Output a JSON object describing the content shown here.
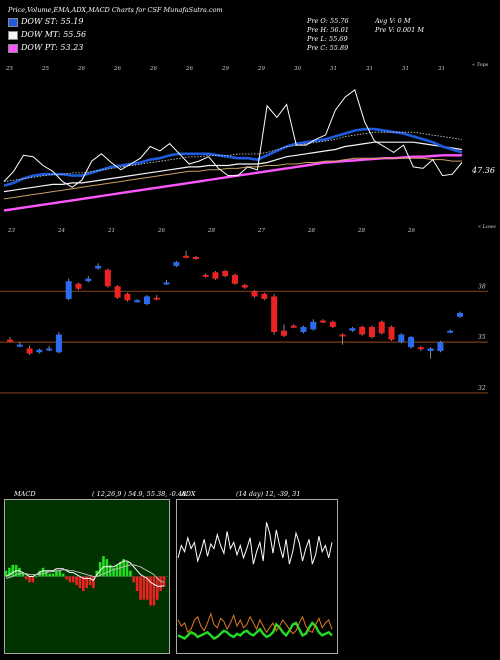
{
  "header": {
    "title": "Price,Volume,EMA,ADX,MACD Charts for CSF MunafaSutra.com",
    "pre_o": "Pre  O: 55.76",
    "pre_h": "Pre  H: 56.01",
    "pre_l": "Pre  L: 55.69",
    "pre_c": "Pre  C: 55.89",
    "avg_v": "Avg V: 0  M",
    "pre_v": "Pre  V: 0.001 M"
  },
  "legend": [
    {
      "label": "DOW ST: 55.19",
      "color": "#1e5bdc"
    },
    {
      "label": "DOW MT: 55.56",
      "color": "#f5f5f5"
    },
    {
      "label": "DOW PT: 53.23",
      "color": "#ff55ff"
    }
  ],
  "ema_panel": {
    "last_label": "47.36",
    "corner_top": "« Tops",
    "corner_bottom": "« Lows",
    "top_dates": [
      "25",
      "25",
      "26",
      "26",
      "26",
      "26",
      "29",
      "29",
      "30",
      "31",
      "31",
      "31",
      "31"
    ],
    "bottom_dates": [
      "23",
      "24",
      "21",
      "26",
      "28",
      "27",
      "28",
      "28",
      "26"
    ]
  },
  "chart_data": [
    {
      "type": "line",
      "name": "ema-price-panel",
      "series": [
        {
          "name": "Price",
          "color": "#ffffff",
          "values": [
            47.2,
            47.9,
            49.0,
            48.9,
            48.3,
            47.9,
            47.2,
            46.8,
            47.3,
            48.6,
            49.1,
            48.5,
            48.0,
            48.4,
            48.8,
            49.6,
            49.3,
            49.8,
            49.1,
            48.4,
            48.6,
            48.9,
            48.1,
            47.6,
            47.6,
            48.2,
            48.0,
            52.4,
            51.6,
            52.5,
            49.7,
            49.7,
            50.1,
            50.4,
            52.1,
            53.0,
            53.5,
            51.3,
            50.0,
            49.6,
            49.2,
            49.7,
            48.2,
            48.1,
            48.7,
            47.6,
            47.7,
            48.5
          ]
        },
        {
          "name": "EMA fast",
          "color": "#1e5bdc",
          "values": [
            46.9,
            47.1,
            47.4,
            47.6,
            47.7,
            47.7,
            47.7,
            47.6,
            47.6,
            47.8,
            48.0,
            48.2,
            48.3,
            48.4,
            48.5,
            48.7,
            48.8,
            49.0,
            49.1,
            49.1,
            49.1,
            49.1,
            49.0,
            48.9,
            48.8,
            48.8,
            48.7,
            49.0,
            49.3,
            49.6,
            49.8,
            49.9,
            50.0,
            50.1,
            50.3,
            50.5,
            50.7,
            50.8,
            50.8,
            50.7,
            50.6,
            50.5,
            50.3,
            50.1,
            49.9,
            49.6,
            49.4,
            49.2
          ]
        },
        {
          "name": "EMA mid",
          "color": "#f5f5f5",
          "values": [
            46.5,
            46.6,
            46.7,
            46.8,
            46.9,
            47.0,
            47.0,
            47.1,
            47.1,
            47.2,
            47.3,
            47.4,
            47.5,
            47.6,
            47.7,
            47.8,
            47.9,
            48.0,
            48.1,
            48.2,
            48.2,
            48.3,
            48.3,
            48.3,
            48.4,
            48.4,
            48.4,
            48.5,
            48.7,
            48.9,
            49.0,
            49.1,
            49.2,
            49.3,
            49.4,
            49.6,
            49.7,
            49.8,
            49.9,
            49.9,
            49.9,
            49.9,
            49.9,
            49.8,
            49.7,
            49.6,
            49.5,
            49.4
          ]
        },
        {
          "name": "EMA slow",
          "color": "#c8a060",
          "values": [
            46.0,
            46.1,
            46.2,
            46.3,
            46.4,
            46.5,
            46.6,
            46.7,
            46.8,
            46.9,
            47.0,
            47.1,
            47.2,
            47.3,
            47.4,
            47.5,
            47.6,
            47.7,
            47.8,
            47.9,
            47.9,
            48.0,
            48.0,
            48.1,
            48.1,
            48.2,
            48.2,
            48.3,
            48.3,
            48.4,
            48.4,
            48.5,
            48.5,
            48.6,
            48.6,
            48.7,
            48.8,
            48.8,
            48.8,
            48.8,
            48.8,
            48.8,
            48.8,
            48.8,
            48.7,
            48.7,
            48.6,
            48.6
          ]
        },
        {
          "name": "Long EMA",
          "color": "#ff55ff",
          "values": [
            45.2,
            45.3,
            45.4,
            45.5,
            45.6,
            45.7,
            45.8,
            45.9,
            46.0,
            46.1,
            46.2,
            46.3,
            46.4,
            46.5,
            46.6,
            46.7,
            46.8,
            46.9,
            47.0,
            47.1,
            47.2,
            47.3,
            47.4,
            47.5,
            47.6,
            47.7,
            47.8,
            47.9,
            48.0,
            48.1,
            48.2,
            48.3,
            48.4,
            48.5,
            48.55,
            48.6,
            48.65,
            48.7,
            48.75,
            48.8,
            48.8,
            48.85,
            48.9,
            48.9,
            48.95,
            49.0,
            49.0,
            49.0
          ]
        }
      ],
      "ylim": [
        44.0,
        55.0
      ]
    },
    {
      "type": "candlestick",
      "name": "price-candles",
      "yticks": [
        {
          "value": 55.5,
          "label": "38"
        },
        {
          "value": 53.5,
          "label": "35"
        },
        {
          "value": 51.5,
          "label": "32"
        }
      ],
      "ylim": [
        51.3,
        57.6
      ],
      "candles": [
        {
          "o": 53.6,
          "c": 53.54,
          "h": 53.7,
          "l": 53.5,
          "up": false
        },
        {
          "o": 53.35,
          "c": 53.4,
          "h": 53.5,
          "l": 53.3,
          "up": true
        },
        {
          "o": 53.25,
          "c": 53.05,
          "h": 53.35,
          "l": 53.0,
          "up": false
        },
        {
          "o": 53.1,
          "c": 53.2,
          "h": 53.25,
          "l": 53.05,
          "up": true
        },
        {
          "o": 53.2,
          "c": 53.25,
          "h": 53.35,
          "l": 53.15,
          "up": true
        },
        {
          "o": 53.1,
          "c": 53.8,
          "h": 53.9,
          "l": 53.05,
          "up": true
        },
        {
          "o": 55.2,
          "c": 55.9,
          "h": 56.0,
          "l": 55.15,
          "up": true
        },
        {
          "o": 55.8,
          "c": 55.6,
          "h": 55.85,
          "l": 55.55,
          "up": false
        },
        {
          "o": 55.9,
          "c": 56.0,
          "h": 56.1,
          "l": 55.85,
          "up": true
        },
        {
          "o": 56.4,
          "c": 56.5,
          "h": 56.6,
          "l": 56.35,
          "up": true
        },
        {
          "o": 56.35,
          "c": 55.7,
          "h": 56.4,
          "l": 55.65,
          "up": false
        },
        {
          "o": 55.7,
          "c": 55.25,
          "h": 55.75,
          "l": 55.2,
          "up": false
        },
        {
          "o": 55.4,
          "c": 55.15,
          "h": 55.45,
          "l": 55.1,
          "up": false
        },
        {
          "o": 55.1,
          "c": 55.15,
          "h": 55.2,
          "l": 55.05,
          "up": true
        },
        {
          "o": 55.0,
          "c": 55.3,
          "h": 55.35,
          "l": 54.95,
          "up": true
        },
        {
          "o": 55.2,
          "c": 55.25,
          "h": 55.35,
          "l": 55.15,
          "up": false
        },
        {
          "o": 55.8,
          "c": 55.85,
          "h": 55.95,
          "l": 55.75,
          "up": true
        },
        {
          "o": 56.5,
          "c": 56.65,
          "h": 56.7,
          "l": 56.45,
          "up": true
        },
        {
          "o": 56.9,
          "c": 56.85,
          "h": 57.1,
          "l": 56.8,
          "up": false
        },
        {
          "o": 56.85,
          "c": 56.8,
          "h": 56.9,
          "l": 56.75,
          "up": false
        },
        {
          "o": 56.15,
          "c": 56.1,
          "h": 56.2,
          "l": 56.05,
          "up": false
        },
        {
          "o": 56.25,
          "c": 56.0,
          "h": 56.3,
          "l": 55.95,
          "up": false
        },
        {
          "o": 56.3,
          "c": 56.1,
          "h": 56.35,
          "l": 56.05,
          "up": false
        },
        {
          "o": 56.15,
          "c": 55.8,
          "h": 56.2,
          "l": 55.75,
          "up": false
        },
        {
          "o": 55.75,
          "c": 55.65,
          "h": 55.8,
          "l": 55.6,
          "up": false
        },
        {
          "o": 55.5,
          "c": 55.3,
          "h": 55.55,
          "l": 55.25,
          "up": false
        },
        {
          "o": 55.4,
          "c": 55.2,
          "h": 55.45,
          "l": 55.15,
          "up": false
        },
        {
          "o": 55.3,
          "c": 53.9,
          "h": 55.4,
          "l": 53.8,
          "up": false
        },
        {
          "o": 53.95,
          "c": 53.75,
          "h": 54.2,
          "l": 53.7,
          "up": false
        },
        {
          "o": 54.15,
          "c": 54.1,
          "h": 54.2,
          "l": 54.05,
          "up": false
        },
        {
          "o": 53.9,
          "c": 54.1,
          "h": 54.15,
          "l": 53.85,
          "up": true
        },
        {
          "o": 54.0,
          "c": 54.3,
          "h": 54.4,
          "l": 53.95,
          "up": true
        },
        {
          "o": 54.3,
          "c": 54.35,
          "h": 54.4,
          "l": 54.25,
          "up": false
        },
        {
          "o": 54.3,
          "c": 54.1,
          "h": 54.35,
          "l": 54.05,
          "up": false
        },
        {
          "o": 53.8,
          "c": 53.75,
          "h": 53.85,
          "l": 53.4,
          "up": false
        },
        {
          "o": 53.95,
          "c": 54.05,
          "h": 54.1,
          "l": 53.9,
          "up": true
        },
        {
          "o": 54.1,
          "c": 53.8,
          "h": 54.15,
          "l": 53.75,
          "up": false
        },
        {
          "o": 54.1,
          "c": 53.7,
          "h": 54.15,
          "l": 53.65,
          "up": false
        },
        {
          "o": 54.3,
          "c": 53.85,
          "h": 54.35,
          "l": 53.8,
          "up": false
        },
        {
          "o": 54.1,
          "c": 53.6,
          "h": 54.15,
          "l": 53.55,
          "up": false
        },
        {
          "o": 53.5,
          "c": 53.8,
          "h": 53.85,
          "l": 53.45,
          "up": true
        },
        {
          "o": 53.3,
          "c": 53.7,
          "h": 53.75,
          "l": 53.25,
          "up": true
        },
        {
          "o": 53.3,
          "c": 53.25,
          "h": 53.35,
          "l": 53.15,
          "up": false
        },
        {
          "o": 53.15,
          "c": 53.25,
          "h": 53.3,
          "l": 52.85,
          "up": true
        },
        {
          "o": 53.15,
          "c": 53.5,
          "h": 53.55,
          "l": 53.1,
          "up": true
        },
        {
          "o": 53.9,
          "c": 53.95,
          "h": 54.0,
          "l": 53.85,
          "up": true
        },
        {
          "o": 54.5,
          "c": 54.65,
          "h": 54.7,
          "l": 54.45,
          "up": true
        }
      ]
    },
    {
      "type": "line",
      "name": "macd-panel",
      "title": "MACD",
      "subtitle": "( 12,26,9 ) 54.9, 55.38, -0.48",
      "series": [
        {
          "name": "MACD",
          "color": "#ffffff",
          "values": [
            0.0,
            0.1,
            0.2,
            0.3,
            0.3,
            0.2,
            0.1,
            0.0,
            0.0,
            0.1,
            0.2,
            0.3,
            0.3,
            0.3,
            0.3,
            0.4,
            0.4,
            0.4,
            0.3,
            0.2,
            0.2,
            0.1,
            0.0,
            -0.1,
            -0.1,
            -0.1,
            -0.2,
            0.1,
            0.3,
            0.5,
            0.5,
            0.5,
            0.5,
            0.6,
            0.7,
            0.8,
            0.8,
            0.7,
            0.5,
            0.3,
            0.1,
            0.0,
            -0.1,
            -0.3,
            -0.4,
            -0.5,
            -0.5,
            -0.48
          ]
        },
        {
          "name": "Signal",
          "color": "#bbbbbb",
          "values": [
            -0.1,
            -0.05,
            0.0,
            0.1,
            0.15,
            0.15,
            0.15,
            0.1,
            0.1,
            0.1,
            0.1,
            0.15,
            0.2,
            0.25,
            0.25,
            0.3,
            0.3,
            0.35,
            0.35,
            0.3,
            0.3,
            0.25,
            0.2,
            0.15,
            0.1,
            0.05,
            0.0,
            0.0,
            0.05,
            0.15,
            0.2,
            0.3,
            0.35,
            0.4,
            0.45,
            0.5,
            0.55,
            0.6,
            0.6,
            0.55,
            0.5,
            0.4,
            0.3,
            0.2,
            0.1,
            -0.1,
            -0.25,
            -0.3
          ]
        }
      ],
      "ylim": [
        -4.0,
        4.0
      ]
    },
    {
      "type": "line",
      "name": "adx-panel",
      "title": "ADX",
      "subtitle": "(14 day) 12, -39, 31",
      "series": [
        {
          "name": "DI line",
          "color": "#ffffff",
          "values": [
            62,
            70,
            66,
            75,
            68,
            72,
            60,
            66,
            74,
            63,
            71,
            68,
            77,
            70,
            65,
            79,
            68,
            72,
            64,
            70,
            62,
            68,
            75,
            58,
            66,
            72,
            60,
            85,
            78,
            65,
            80,
            70,
            62,
            74,
            58,
            66,
            78,
            72,
            60,
            68,
            74,
            58,
            64,
            76,
            66,
            70,
            62,
            72
          ]
        },
        {
          "name": "ADX",
          "color": "#22dd22",
          "values": [
            12,
            11,
            10,
            12,
            14,
            13,
            11,
            12,
            13,
            14,
            12,
            10,
            11,
            13,
            15,
            14,
            12,
            11,
            13,
            12,
            14,
            15,
            13,
            12,
            14,
            16,
            13,
            11,
            12,
            14,
            19,
            17,
            14,
            12,
            15,
            19,
            20,
            16,
            12,
            13,
            17,
            20,
            18,
            14,
            12,
            13,
            14,
            12
          ]
        },
        {
          "name": "DI alt",
          "color": "#dd7a22",
          "values": [
            22,
            18,
            20,
            14,
            16,
            22,
            24,
            18,
            15,
            20,
            26,
            19,
            17,
            23,
            21,
            16,
            20,
            25,
            18,
            22,
            17,
            19,
            24,
            20,
            16,
            22,
            18,
            14,
            17,
            20,
            15,
            18,
            22,
            19,
            16,
            13,
            15,
            20,
            24,
            18,
            15,
            14,
            19,
            23,
            17,
            20,
            22,
            16
          ]
        }
      ],
      "ylim": [
        0,
        100
      ]
    }
  ]
}
